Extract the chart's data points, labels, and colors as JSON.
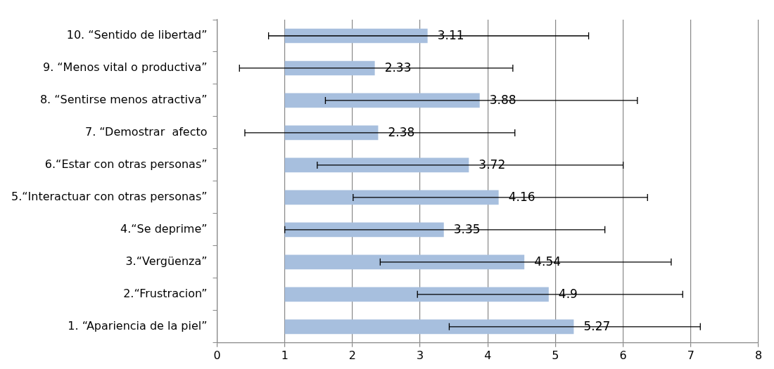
{
  "chart_data": {
    "type": "bar",
    "orientation": "horizontal",
    "categories": [
      "10. “Sentido de libertad”",
      "9. “Menos vital o productiva”",
      "8. “Sentirse menos atractiva”",
      "7. “Demostrar  afecto",
      "6.“Estar con otras personas”",
      "5.“Interactuar con otras personas”",
      "4.“Se deprime”",
      "3.“Vergüenza”",
      "2.“Frustracion”",
      "1. “Apariencia de la piel”"
    ],
    "base": [
      1,
      1,
      1,
      1,
      1,
      1,
      1,
      1,
      1,
      1
    ],
    "values": [
      2.11,
      1.33,
      2.88,
      1.38,
      2.72,
      3.16,
      2.35,
      3.54,
      3.9,
      4.27
    ],
    "value_labels": [
      "3.11",
      "2.33",
      "3.88",
      "2.38",
      "3.72",
      "4.16",
      "3.35",
      "4.54",
      "4.9",
      "5.27"
    ],
    "errors": [
      [
        0.76,
        5.49
      ],
      [
        0.33,
        4.37
      ],
      [
        1.6,
        6.21
      ],
      [
        0.41,
        4.4
      ],
      [
        1.48,
        6.0
      ],
      [
        2.01,
        6.36
      ],
      [
        1.0,
        5.73
      ],
      [
        2.41,
        6.71
      ],
      [
        2.96,
        6.88
      ],
      [
        3.43,
        7.14
      ]
    ],
    "color": "#a7bfde",
    "xlim": [
      0,
      8
    ],
    "xticks": [
      0,
      1,
      2,
      3,
      4,
      5,
      6,
      7,
      8
    ],
    "grid": "x",
    "legend": false
  }
}
